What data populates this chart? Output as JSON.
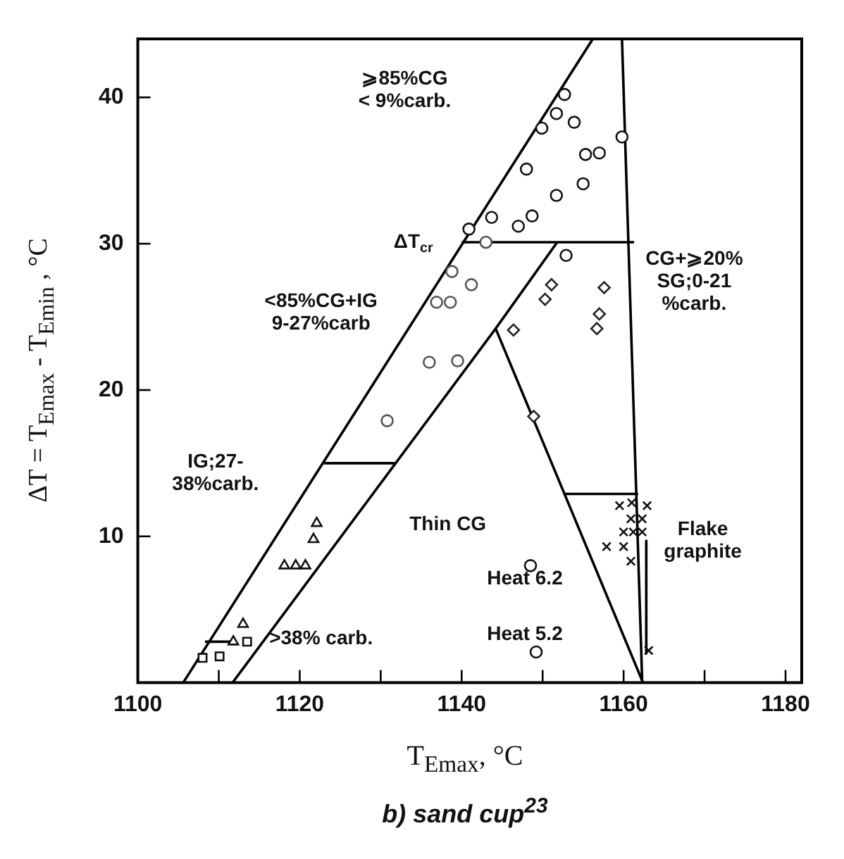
{
  "chart_data": {
    "type": "scatter",
    "title": "b) sand cup$^{23}$",
    "xlabel": "T$_{Emax}$, °C",
    "ylabel": "ΔT = T$_{Emax}$ - T$_{Emin}$ , °C",
    "xlim": [
      1100,
      1182
    ],
    "ylim": [
      0,
      44
    ],
    "xticks": [
      1100,
      {
        "value": 1110,
        "label": null
      },
      1120,
      {
        "value": 1130,
        "label": null
      },
      1140,
      {
        "value": 1150,
        "label": null
      },
      1160,
      {
        "value": 1170,
        "label": null
      },
      1180
    ],
    "yticks": [
      10,
      20,
      30,
      40
    ],
    "grid": false,
    "legend": false,
    "series": [
      {
        "marker": "circle",
        "color": "#111111",
        "x": [
          1152.7,
          1151.7,
          1149.9,
          1153.9,
          1159.8,
          1155.3,
          1157.0,
          1148.0,
          1155.0,
          1151.7,
          1148.7,
          1143.7,
          1147.0,
          1140.9,
          1152.9,
          1148.5,
          1149.2
        ],
        "values": [
          40.2,
          38.9,
          37.9,
          38.3,
          37.3,
          36.1,
          36.2,
          35.1,
          34.1,
          33.3,
          31.9,
          31.8,
          31.2,
          31.0,
          29.2,
          8.0,
          2.1
        ]
      },
      {
        "marker": "circle",
        "color": "#555555",
        "x": [
          1143.0,
          1138.8,
          1141.2,
          1136.9,
          1138.6,
          1136.0,
          1139.5,
          1130.8
        ],
        "values": [
          30.1,
          28.1,
          27.2,
          26.0,
          26.0,
          21.9,
          22.0,
          17.9
        ]
      },
      {
        "marker": "diamond",
        "color": "#222222",
        "x": [
          1151.1,
          1150.3,
          1146.4,
          1157.6,
          1157.0,
          1156.7,
          1148.9
        ],
        "values": [
          27.2,
          26.2,
          24.1,
          27.0,
          25.2,
          24.2,
          18.2
        ]
      },
      {
        "marker": "triangle",
        "color": "#111111",
        "x": [
          1122.1,
          1121.7,
          1118.1,
          1119.5,
          1120.7,
          1113.0,
          1111.8
        ],
        "values": [
          10.9,
          9.8,
          8.0,
          8.0,
          8.0,
          4.0,
          2.8
        ]
      },
      {
        "marker": "square",
        "color": "#111111",
        "x": [
          1113.5,
          1108.0,
          1110.1
        ],
        "values": [
          2.8,
          1.7,
          1.8
        ]
      },
      {
        "marker": "cross",
        "color": "#111111",
        "x": [
          1159.5,
          1161.0,
          1162.9,
          1160.9,
          1162.3,
          1160.0,
          1161.2,
          1162.3,
          1157.9,
          1160.0,
          1160.9,
          1163.1
        ],
        "values": [
          12.1,
          12.3,
          12.1,
          11.2,
          11.2,
          10.3,
          10.3,
          10.3,
          9.3,
          9.3,
          8.3,
          2.2
        ]
      },
      {
        "type": "line",
        "marker": "none",
        "color": "#000000",
        "x": [
          1105.6,
          1156.2
        ],
        "values": [
          0,
          44
        ]
      },
      {
        "type": "line",
        "marker": "none",
        "color": "#000000",
        "x": [
          1159.8,
          1162.3
        ],
        "values": [
          44,
          0
        ]
      },
      {
        "type": "line",
        "marker": "none",
        "color": "#000000",
        "x": [
          1111.7,
          1144.2,
          1151.8
        ],
        "values": [
          0,
          24.2,
          30.1
        ]
      },
      {
        "type": "line",
        "marker": "none",
        "color": "#000000",
        "x": [
          1144.2,
          1162.4
        ],
        "values": [
          24.2,
          0
        ]
      },
      {
        "type": "line",
        "marker": "none",
        "color": "#000000",
        "x": [
          1140.0,
          1161.3
        ],
        "values": [
          30.1,
          30.1
        ]
      },
      {
        "type": "line",
        "marker": "none",
        "color": "#000000",
        "x": [
          1123.0,
          1131.7
        ],
        "values": [
          15.0,
          15.0
        ]
      },
      {
        "type": "line",
        "marker": "none",
        "color": "#000000",
        "x": [
          1152.7,
          1161.8
        ],
        "values": [
          12.9,
          12.9
        ]
      },
      {
        "type": "line",
        "marker": "none",
        "color": "#000000",
        "x": [
          1108.3,
          1111.7
        ],
        "values": [
          2.8,
          2.8
        ]
      },
      {
        "type": "line",
        "marker": "none",
        "color": "#000000",
        "x": [
          1162.8,
          1162.8
        ],
        "values": [
          9.7,
          2.0
        ]
      }
    ],
    "annotations": [
      "⩾85%CG\n< 9%carb.",
      "ΔT$_{cr}$",
      "<85%CG+IG\n9-27%carb",
      "CG+⩾20%\nSG;0-21\n%carb.",
      "IG;27-\n38%carb.",
      ">38% carb.",
      "Thin CG",
      "Heat 6.2",
      "Heat 5.2",
      "Flake\ngraphite"
    ]
  }
}
